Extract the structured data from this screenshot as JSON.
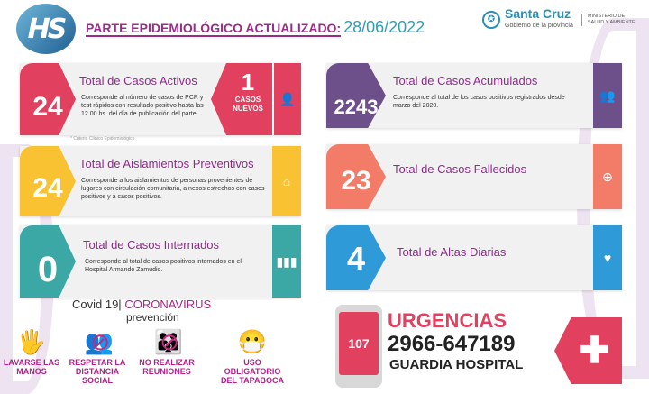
{
  "header": {
    "logo": "HS RG",
    "title": "PARTE EPIDEMIOLÓGICO ACTUALIZADO:",
    "date": "28/06/2022",
    "gov_name": "Santa Cruz",
    "gov_sub": "Gobierno de la provincia",
    "ministry_1": "MINISTERIO DE",
    "ministry_2": "SALUD Y AMBIENTE"
  },
  "cards": [
    {
      "value": "24",
      "title": "Total de Casos Activos",
      "desc": "Corresponde al número de casos de PCR y test rápidos con resultado positivo  hasta las 12.00 hs. del día de publicación del parte.",
      "new_value": "1",
      "new_label_1": "CASOS",
      "new_label_2": "NUEVOS",
      "note": "* Criterio Clínico Epidemiológico",
      "icon": "user-icon",
      "color": "#e2405f"
    },
    {
      "value": "2243",
      "title": "Total de Casos Acumulados",
      "desc": "Corresponde al total de los casos positivos registrados desde marzo del 2020.",
      "icon": "group-icon",
      "color": "#6d4f89"
    },
    {
      "value": "24",
      "title": "Total de Aislamientos Preventivos",
      "desc": "Corresponde a los aislamientos de personas provenientes de lugares con circulación comunitaria, a nexos estrechos con casos positivos y a casos positivos.",
      "icon": "home-icon",
      "color": "#f8c232"
    },
    {
      "value": "23",
      "title": "Total de Casos Fallecidos",
      "desc": "",
      "icon": "plus-circle-icon",
      "color": "#f27c68"
    },
    {
      "value": "0",
      "title": "Total de Casos Internados",
      "desc": "Corresponde al total de casos positivos internados en el Hospital Armando Zamudio.",
      "icon": "bar-chart-icon",
      "color": "#3ba8a5"
    },
    {
      "value": "4",
      "title": "Total de Altas Diarias",
      "desc": "",
      "icon": "heart-icon",
      "color": "#2f9ad8"
    }
  ],
  "prevention": {
    "heading_1": "Covid 19|",
    "heading_2": "CORONAVIRUS",
    "heading_3": "prevención",
    "items": [
      {
        "label": "LAVARSE LAS MANOS",
        "icon": "hand-wash-icon"
      },
      {
        "label": "RESPETAR LA DISTANCIA SOCIAL",
        "icon": "social-distance-icon"
      },
      {
        "label": "NO REALIZAR REUNIONES",
        "icon": "no-gatherings-icon"
      },
      {
        "label": "USO OBLIGATORIO DEL TAPABOCA",
        "icon": "face-mask-icon"
      }
    ]
  },
  "emergency": {
    "phone_short": "107",
    "title": "URGENCIAS",
    "phone": "2966-647189",
    "subtitle": "GUARDIA HOSPITAL",
    "icon": "medical-cross-icon"
  }
}
